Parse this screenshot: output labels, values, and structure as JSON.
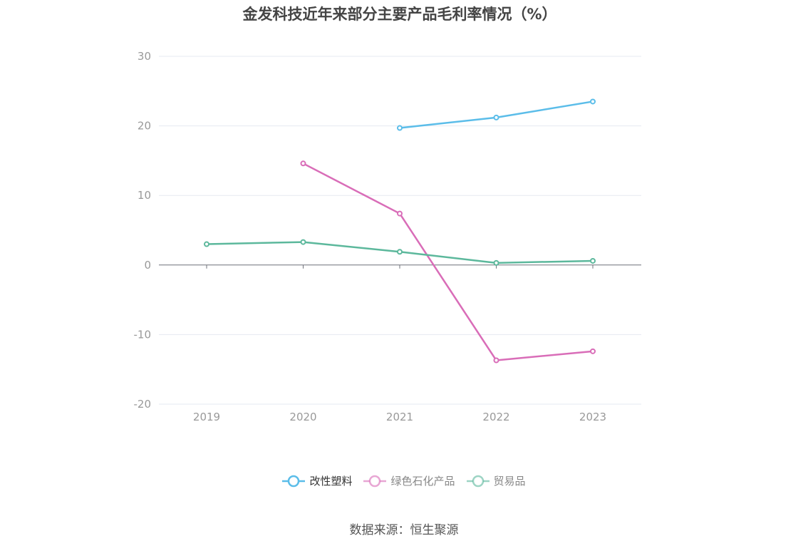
{
  "title": "金发科技近年来部分主要产品毛利率情况（%）",
  "source": "数据来源：恒生聚源",
  "chart_data": {
    "type": "line",
    "title": "金发科技近年来部分主要产品毛利率情况（%）",
    "categories": [
      "2019",
      "2020",
      "2021",
      "2022",
      "2023"
    ],
    "ylim": [
      -20,
      30
    ],
    "yticks": [
      30,
      20,
      10,
      0,
      -10,
      -20
    ],
    "grid": true,
    "legend_position": "bottom",
    "series": [
      {
        "name": "改性塑料",
        "color": "#5bbde9",
        "legend_text_color": "#333333",
        "values": [
          null,
          null,
          19.7,
          21.2,
          23.5
        ]
      },
      {
        "name": "绿色石化产品",
        "color": "#d96db8",
        "legend_text_color": "#888888",
        "values": [
          null,
          14.6,
          7.4,
          -13.7,
          -12.4
        ]
      },
      {
        "name": "贸易品",
        "color": "#5cb89c",
        "legend_text_color": "#888888",
        "values": [
          3.0,
          3.3,
          1.9,
          0.3,
          0.6
        ]
      }
    ]
  }
}
